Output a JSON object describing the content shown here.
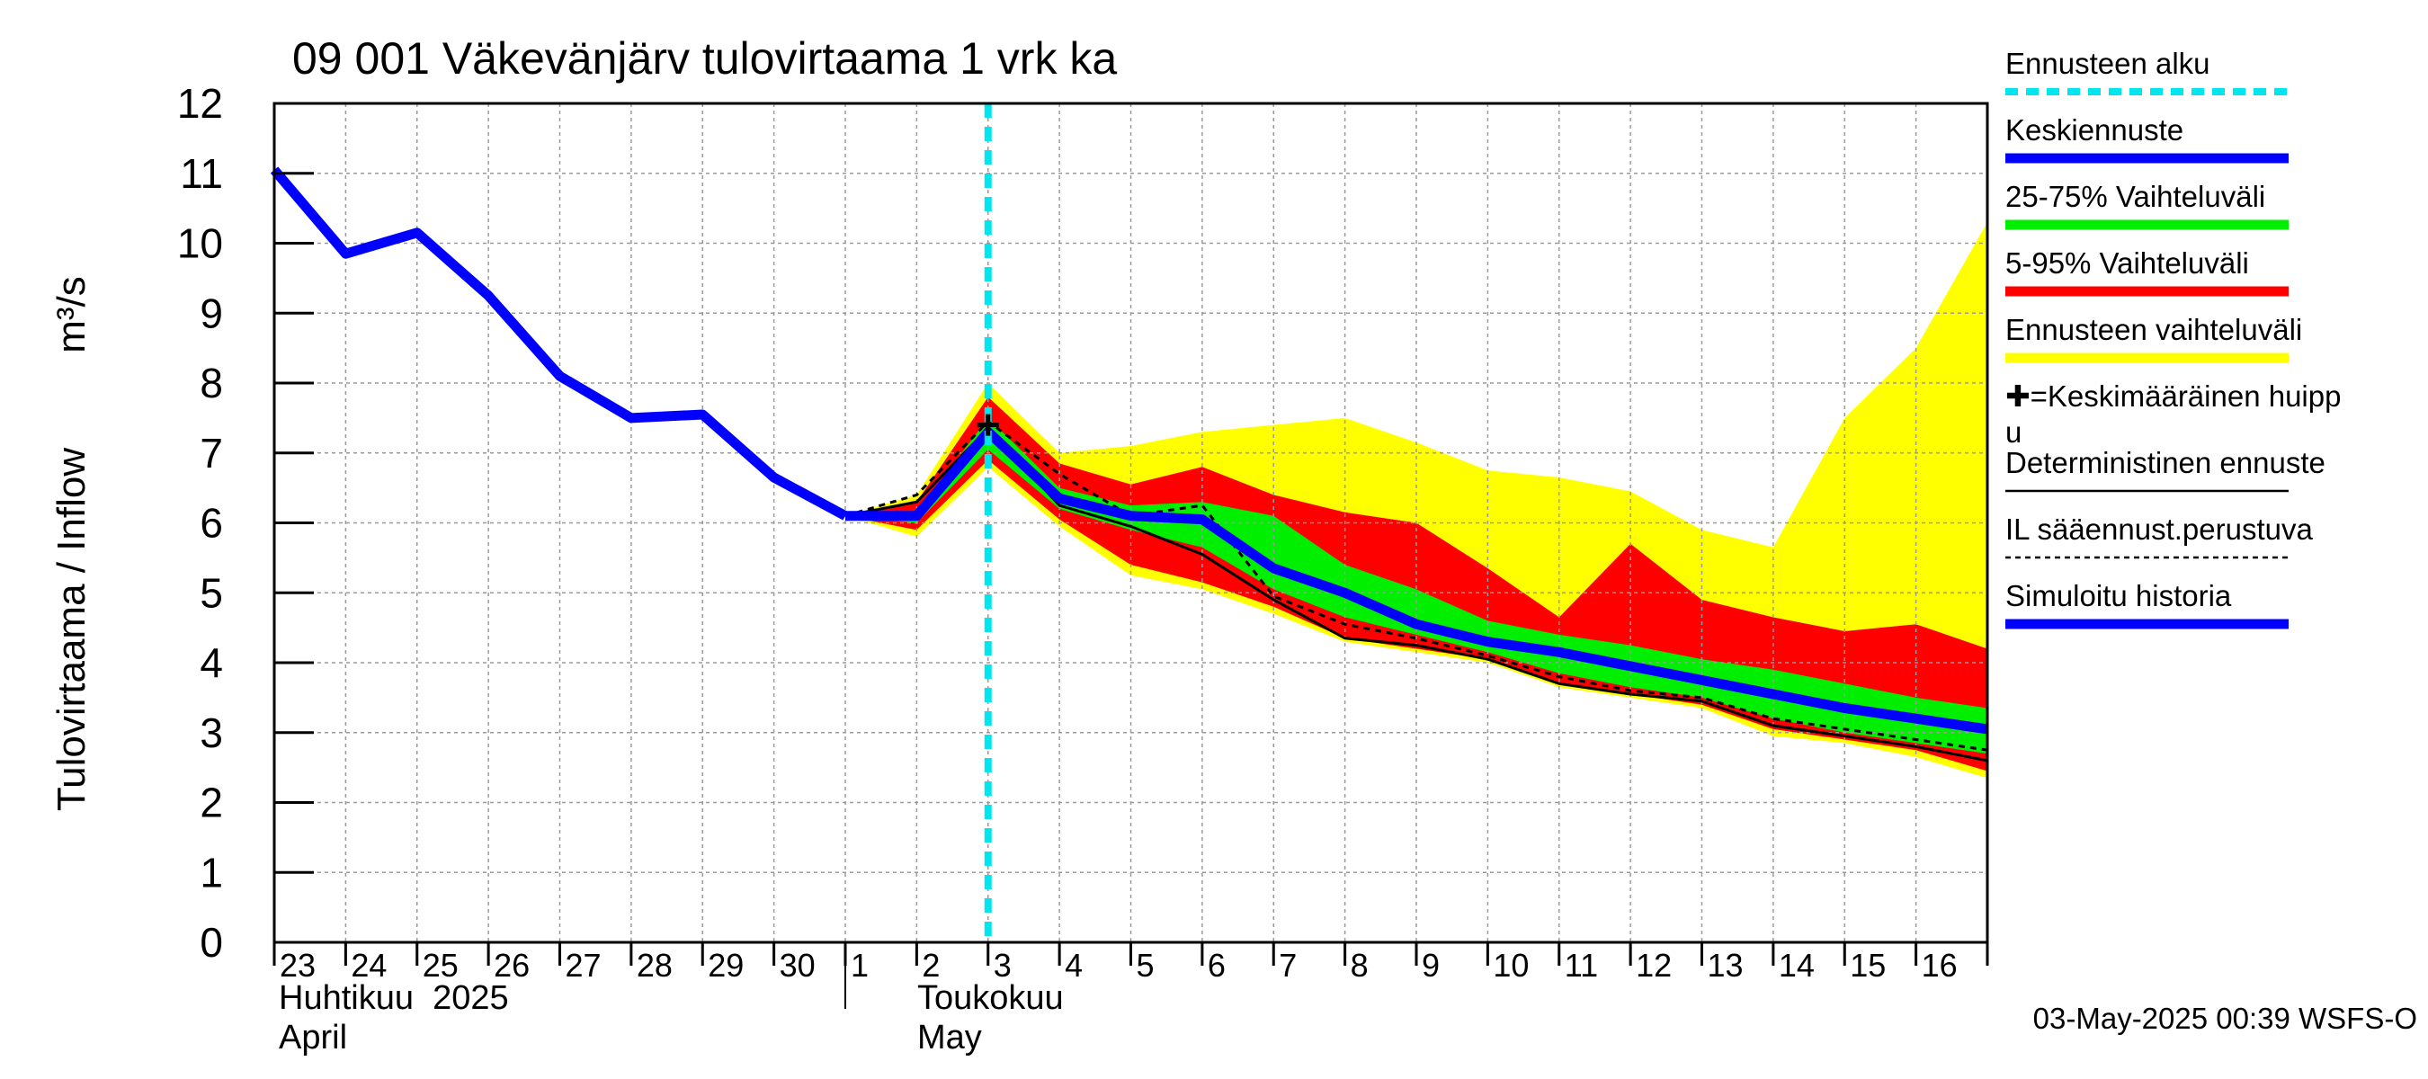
{
  "chart_data": {
    "type": "area",
    "title": "09 001 Väkevänjärv tulovirtaama 1 vrk ka",
    "ylabel": "Tulovirtaama / Inflow",
    "yunit": "m³/s",
    "ylim": [
      0,
      12
    ],
    "yticks": [
      "0",
      "1",
      "2",
      "3",
      "4",
      "5",
      "6",
      "7",
      "8",
      "9",
      "10",
      "11",
      "12"
    ],
    "xlim": [
      "2025-04-23",
      "2025-05-17"
    ],
    "xtick_labels": [
      "23",
      "24",
      "25",
      "26",
      "27",
      "28",
      "29",
      "30",
      "1",
      "2",
      "3",
      "4",
      "5",
      "6",
      "7",
      "8",
      "9",
      "10",
      "11",
      "12",
      "13",
      "14",
      "15",
      "16"
    ],
    "month_labels": [
      {
        "fi": "Huhtikuu  2025",
        "en": "April"
      },
      {
        "fi": "Toukokuu",
        "en": "May"
      }
    ],
    "grid": true,
    "forecast_start": "2025-05-03",
    "timestamp": "03-May-2025 00:39 WSFS-O",
    "legend_position": "right",
    "legend": [
      {
        "label": "Ennusteen alku",
        "color": "#00e5ee",
        "style": "dashed"
      },
      {
        "label": "Keskiennuste",
        "color": "#0000ff",
        "style": "thick"
      },
      {
        "label": "25-75% Vaihteluväli",
        "color": "#00ee00",
        "style": "thick"
      },
      {
        "label": "5-95% Vaihteluväli",
        "color": "#ff0000",
        "style": "thick"
      },
      {
        "label": "Ennusteen vaihteluväli",
        "color": "#ffff00",
        "style": "thick"
      },
      {
        "label": "✚=Keskimääräinen huipp",
        "label2": "u",
        "color": "#000000",
        "style": "none"
      },
      {
        "label": "Deterministinen ennuste",
        "color": "#000000",
        "style": "thin"
      },
      {
        "label": "IL sääennust.perustuva",
        "color": "#000000",
        "style": "dotted"
      },
      {
        "label": "Simuloitu historia",
        "color": "#0000ff",
        "style": "thick"
      }
    ],
    "colors": {
      "yellow": "#ffff00",
      "red": "#ff0000",
      "green": "#00ee00",
      "blue": "#0000ff",
      "cyan": "#00e5ee",
      "black": "#000000",
      "grid": "#9a9a9a"
    },
    "series": [
      {
        "name": "Simuloitu historia",
        "x": [
          "2025-04-23",
          "2025-04-24",
          "2025-04-25",
          "2025-04-26",
          "2025-04-27",
          "2025-04-28",
          "2025-04-29",
          "2025-04-30",
          "2025-05-01"
        ],
        "y": [
          11.05,
          9.85,
          10.15,
          9.25,
          8.1,
          7.5,
          7.55,
          6.65,
          6.1
        ]
      },
      {
        "name": "Ennusteen vaihteluväli",
        "x": [
          "2025-05-01",
          "2025-05-02",
          "2025-05-03",
          "2025-05-04",
          "2025-05-05",
          "2025-05-06",
          "2025-05-07",
          "2025-05-08",
          "2025-05-09",
          "2025-05-10",
          "2025-05-11",
          "2025-05-12",
          "2025-05-13",
          "2025-05-14",
          "2025-05-15",
          "2025-05-16",
          "2025-05-17"
        ],
        "upper": [
          6.1,
          6.4,
          8.0,
          7.0,
          7.1,
          7.3,
          7.4,
          7.5,
          7.15,
          6.75,
          6.65,
          6.45,
          5.9,
          5.65,
          7.5,
          8.5,
          10.3
        ],
        "lower": [
          6.1,
          5.8,
          6.8,
          5.95,
          5.25,
          5.05,
          4.7,
          4.3,
          4.15,
          4.0,
          3.65,
          3.5,
          3.35,
          2.95,
          2.85,
          2.65,
          2.35
        ]
      },
      {
        "name": "5-95% Vaihteluväli",
        "x": [
          "2025-05-01",
          "2025-05-02",
          "2025-05-03",
          "2025-05-04",
          "2025-05-05",
          "2025-05-06",
          "2025-05-07",
          "2025-05-08",
          "2025-05-09",
          "2025-05-10",
          "2025-05-11",
          "2025-05-12",
          "2025-05-13",
          "2025-05-14",
          "2025-05-15",
          "2025-05-16",
          "2025-05-17"
        ],
        "upper": [
          6.1,
          6.3,
          7.8,
          6.85,
          6.55,
          6.8,
          6.4,
          6.15,
          6.0,
          5.35,
          4.65,
          5.7,
          4.9,
          4.65,
          4.45,
          4.55,
          4.2
        ],
        "lower": [
          6.1,
          5.9,
          6.9,
          6.05,
          5.4,
          5.15,
          4.8,
          4.35,
          4.2,
          4.05,
          3.7,
          3.55,
          3.4,
          3.05,
          2.9,
          2.75,
          2.45
        ]
      },
      {
        "name": "25-75% Vaihteluväli",
        "x": [
          "2025-05-01",
          "2025-05-02",
          "2025-05-03",
          "2025-05-04",
          "2025-05-05",
          "2025-05-06",
          "2025-05-07",
          "2025-05-08",
          "2025-05-09",
          "2025-05-10",
          "2025-05-11",
          "2025-05-12",
          "2025-05-13",
          "2025-05-14",
          "2025-05-15",
          "2025-05-16",
          "2025-05-17"
        ],
        "upper": [
          6.1,
          6.15,
          7.5,
          6.5,
          6.25,
          6.3,
          6.1,
          5.4,
          5.05,
          4.6,
          4.4,
          4.25,
          4.05,
          3.9,
          3.7,
          3.5,
          3.35
        ],
        "lower": [
          6.1,
          6.0,
          7.05,
          6.2,
          5.9,
          5.65,
          5.05,
          4.65,
          4.4,
          4.15,
          3.85,
          3.65,
          3.5,
          3.2,
          3.0,
          2.85,
          2.7
        ]
      },
      {
        "name": "Keskiennuste",
        "x": [
          "2025-05-01",
          "2025-05-02",
          "2025-05-03",
          "2025-05-04",
          "2025-05-05",
          "2025-05-06",
          "2025-05-07",
          "2025-05-08",
          "2025-05-09",
          "2025-05-10",
          "2025-05-11",
          "2025-05-12",
          "2025-05-13",
          "2025-05-14",
          "2025-05-15",
          "2025-05-16",
          "2025-05-17"
        ],
        "y": [
          6.1,
          6.1,
          7.3,
          6.35,
          6.1,
          6.05,
          5.35,
          5.0,
          4.55,
          4.3,
          4.15,
          3.95,
          3.75,
          3.55,
          3.35,
          3.2,
          3.05
        ]
      },
      {
        "name": "Deterministinen ennuste",
        "x": [
          "2025-05-01",
          "2025-05-02",
          "2025-05-03",
          "2025-05-04",
          "2025-05-05",
          "2025-05-06",
          "2025-05-07",
          "2025-05-08",
          "2025-05-09",
          "2025-05-10",
          "2025-05-11",
          "2025-05-12",
          "2025-05-13",
          "2025-05-14",
          "2025-05-15",
          "2025-05-16",
          "2025-05-17"
        ],
        "y": [
          6.1,
          6.3,
          7.35,
          6.25,
          5.95,
          5.55,
          4.9,
          4.35,
          4.25,
          4.05,
          3.7,
          3.55,
          3.45,
          3.1,
          2.95,
          2.8,
          2.6
        ]
      },
      {
        "name": "IL sääennust.perustuva",
        "x": [
          "2025-05-01",
          "2025-05-02",
          "2025-05-03",
          "2025-05-04",
          "2025-05-05",
          "2025-05-06",
          "2025-05-07",
          "2025-05-08",
          "2025-05-09",
          "2025-05-10",
          "2025-05-11",
          "2025-05-12",
          "2025-05-13",
          "2025-05-14",
          "2025-05-15",
          "2025-05-16",
          "2025-05-17"
        ],
        "y": [
          6.1,
          6.4,
          7.45,
          6.7,
          6.1,
          6.25,
          4.95,
          4.55,
          4.35,
          4.1,
          3.8,
          3.6,
          3.5,
          3.2,
          3.05,
          2.9,
          2.75
        ]
      }
    ],
    "peak_marker": {
      "x": "2025-05-03",
      "y": 7.4
    }
  }
}
